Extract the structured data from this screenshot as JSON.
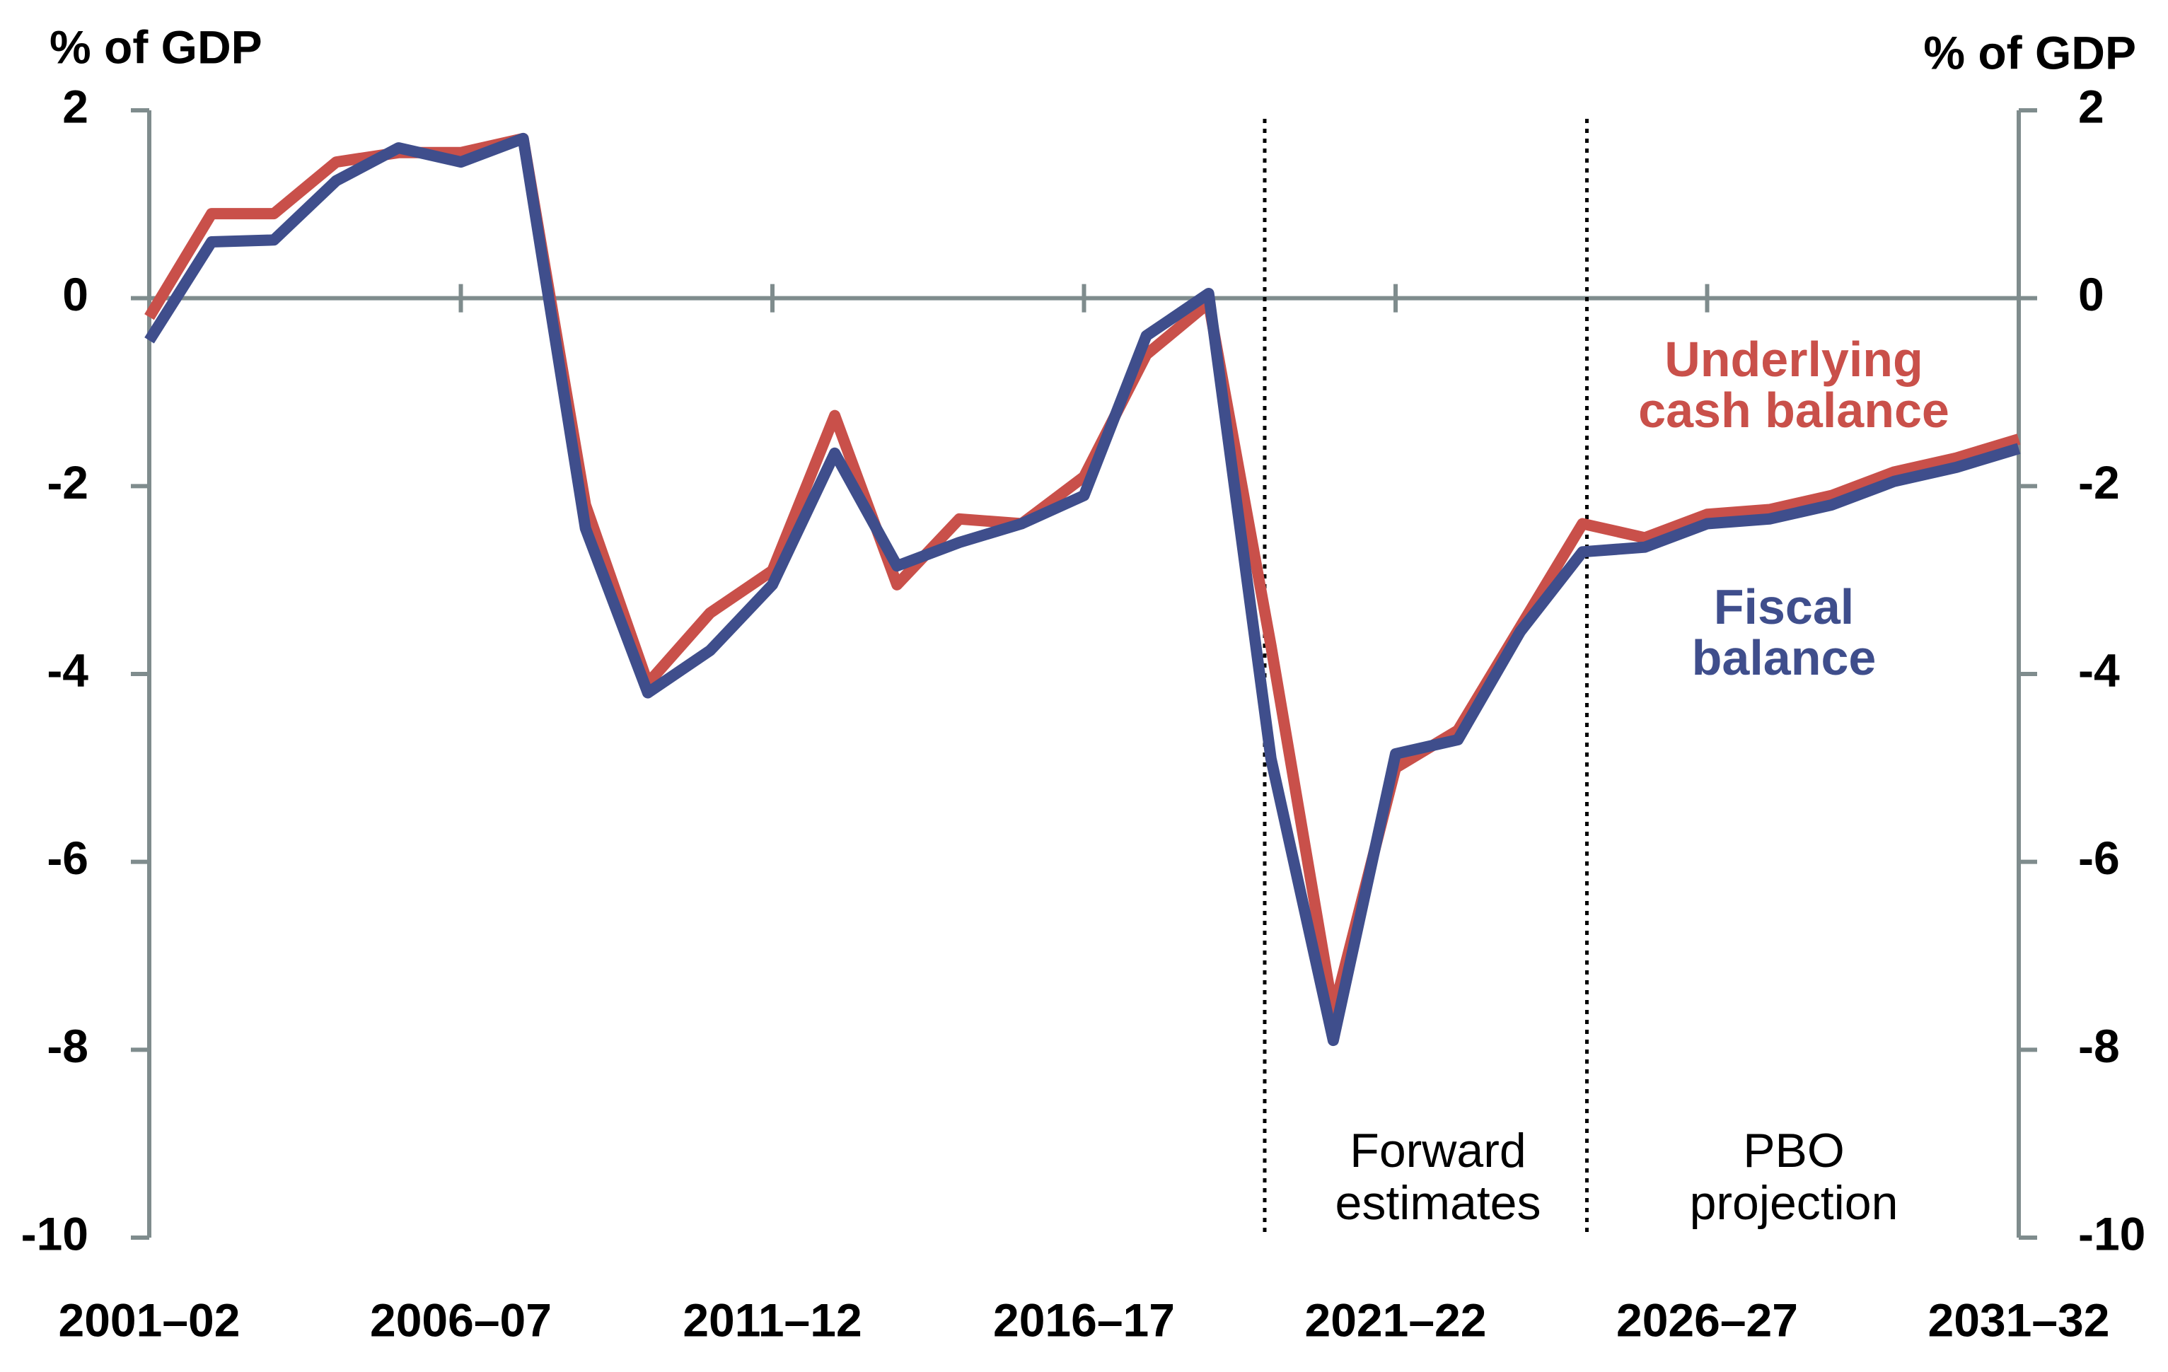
{
  "chart_data": {
    "type": "line",
    "y_label": "% of GDP",
    "y2_label": "% of GDP",
    "categories": [
      "2001–02",
      null,
      null,
      null,
      null,
      "2006–07",
      null,
      null,
      null,
      null,
      "2011–12",
      null,
      null,
      null,
      null,
      "2016–17",
      null,
      null,
      null,
      null,
      "2021–22",
      null,
      null,
      null,
      null,
      "2026–27",
      null,
      null,
      null,
      null,
      "2031–32"
    ],
    "ylim": [
      -10,
      2
    ],
    "yticks": [
      -10,
      -8,
      -6,
      -4,
      -2,
      0,
      2
    ],
    "y2lim": [
      -10,
      2
    ],
    "y2ticks": [
      -10,
      -8,
      -6,
      -4,
      -2,
      0,
      2
    ],
    "series": [
      {
        "name": "Underlying cash balance",
        "color": "#c9504a",
        "values": [
          -0.2,
          0.9,
          0.9,
          1.45,
          1.55,
          1.55,
          1.7,
          -2.2,
          -4.1,
          -3.35,
          -2.9,
          -1.25,
          -3.05,
          -2.35,
          -2.4,
          -1.9,
          -0.6,
          -0.05,
          -3.7,
          -7.6,
          -5.0,
          -4.6,
          -3.5,
          -2.4,
          -2.55,
          -2.3,
          -2.25,
          -2.1,
          -1.85,
          -1.7,
          -1.5
        ]
      },
      {
        "name": "Fiscal balance",
        "color": "#3f4e8c",
        "values": [
          -0.45,
          0.6,
          0.62,
          1.25,
          1.6,
          1.45,
          1.7,
          -2.45,
          -4.2,
          -3.75,
          -3.05,
          -1.65,
          -2.85,
          -2.6,
          -2.4,
          -2.1,
          -0.4,
          0.05,
          -4.9,
          -7.9,
          -4.85,
          -4.7,
          -3.55,
          -2.7,
          -2.65,
          -2.4,
          -2.35,
          -2.2,
          -1.95,
          -1.8,
          -1.6
        ]
      }
    ],
    "annotations": [
      "Forward estimates",
      "PBO projection"
    ]
  }
}
